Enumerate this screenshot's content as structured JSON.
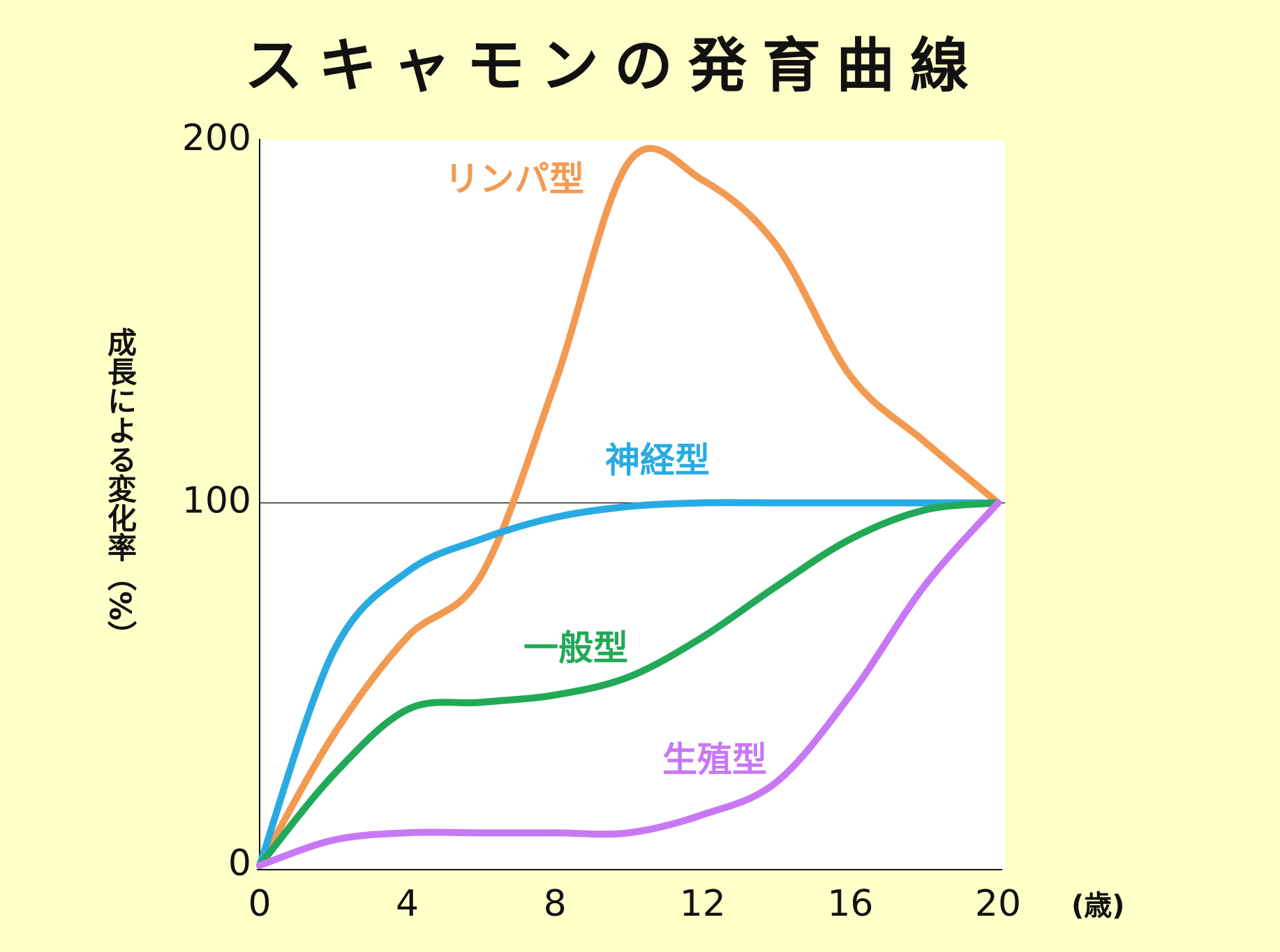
{
  "chart_data": {
    "type": "line",
    "title": "スキャモンの発育曲線",
    "y_label": "成長による変化率（%）",
    "x_label": "(歳)",
    "x": [
      0,
      2,
      4,
      6,
      8,
      10,
      12,
      14,
      16,
      18,
      20
    ],
    "xlim": [
      0,
      20
    ],
    "xticks": [
      0,
      4,
      8,
      12,
      16,
      20
    ],
    "ylim": [
      0,
      200
    ],
    "yticks": [
      0,
      100,
      200
    ],
    "reference_line": 100,
    "series": [
      {
        "name": "リンパ型",
        "color": "#f39a52",
        "values": [
          0,
          36,
          63,
          80,
          133,
          194,
          189,
          171,
          135,
          117,
          100
        ]
      },
      {
        "name": "神経型",
        "color": "#29abe2",
        "values": [
          0,
          59,
          81,
          90,
          96,
          99,
          100,
          100,
          100,
          100,
          100
        ]
      },
      {
        "name": "一般型",
        "color": "#22a957",
        "values": [
          0,
          25,
          43,
          45,
          47,
          52,
          63,
          77,
          90,
          98,
          100
        ]
      },
      {
        "name": "生殖型",
        "color": "#c978f5",
        "values": [
          0,
          7,
          9,
          9,
          9,
          9,
          14,
          23,
          47,
          77,
          100
        ]
      }
    ]
  }
}
